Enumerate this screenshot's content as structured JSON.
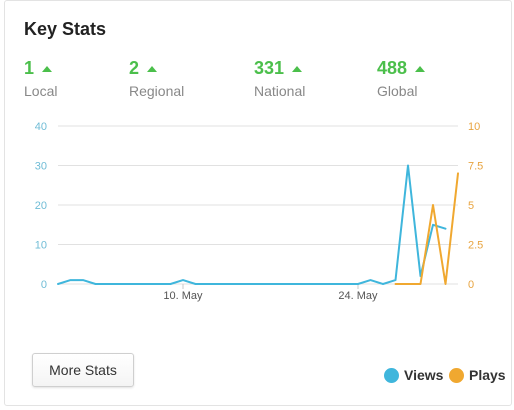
{
  "card": {
    "title": "Key Stats",
    "stats": [
      {
        "value": "1",
        "label": "Local"
      },
      {
        "value": "2",
        "label": "Regional"
      },
      {
        "value": "331",
        "label": "National"
      },
      {
        "value": "488",
        "label": "Global"
      }
    ],
    "more_button_label": "More Stats"
  },
  "colors": {
    "accent_green": "#4bbf4b",
    "views": "#3fb6dc",
    "plays": "#f0a830",
    "grid": "#e1e1e1",
    "axis_label": "#888888"
  },
  "icons": {
    "trend": "triangle-up-icon"
  },
  "chart_data": {
    "type": "line",
    "x_tick_labels": [
      "10. May",
      "24. May"
    ],
    "legend": [
      "Views",
      "Plays"
    ],
    "legend_position": "bottom-right",
    "grid": true,
    "y_left": {
      "ticks": [
        0,
        10,
        20,
        30,
        40
      ],
      "range": [
        0,
        40
      ]
    },
    "y_right": {
      "ticks": [
        "0",
        "2.5",
        "5",
        "7.5",
        "10"
      ],
      "range": [
        0,
        10
      ]
    },
    "x_range": [
      0,
      32
    ],
    "series": [
      {
        "name": "Views",
        "axis": "left",
        "points": [
          [
            0,
            0
          ],
          [
            1,
            1
          ],
          [
            2,
            1
          ],
          [
            3,
            0
          ],
          [
            4,
            0
          ],
          [
            5,
            0
          ],
          [
            6,
            0
          ],
          [
            7,
            0
          ],
          [
            8,
            0
          ],
          [
            9,
            0
          ],
          [
            10,
            1
          ],
          [
            11,
            0
          ],
          [
            12,
            0
          ],
          [
            13,
            0
          ],
          [
            14,
            0
          ],
          [
            15,
            0
          ],
          [
            16,
            0
          ],
          [
            17,
            0
          ],
          [
            18,
            0
          ],
          [
            19,
            0
          ],
          [
            20,
            0
          ],
          [
            21,
            0
          ],
          [
            22,
            0
          ],
          [
            23,
            0
          ],
          [
            24,
            0
          ],
          [
            25,
            1
          ],
          [
            26,
            0
          ],
          [
            27,
            1
          ],
          [
            28,
            30
          ],
          [
            29,
            2
          ],
          [
            30,
            15
          ],
          [
            31,
            14
          ]
        ]
      },
      {
        "name": "Plays",
        "axis": "right",
        "points": [
          [
            27,
            0
          ],
          [
            28,
            0
          ],
          [
            29,
            0
          ],
          [
            30,
            5
          ],
          [
            31,
            0
          ],
          [
            32,
            7
          ]
        ]
      }
    ]
  }
}
